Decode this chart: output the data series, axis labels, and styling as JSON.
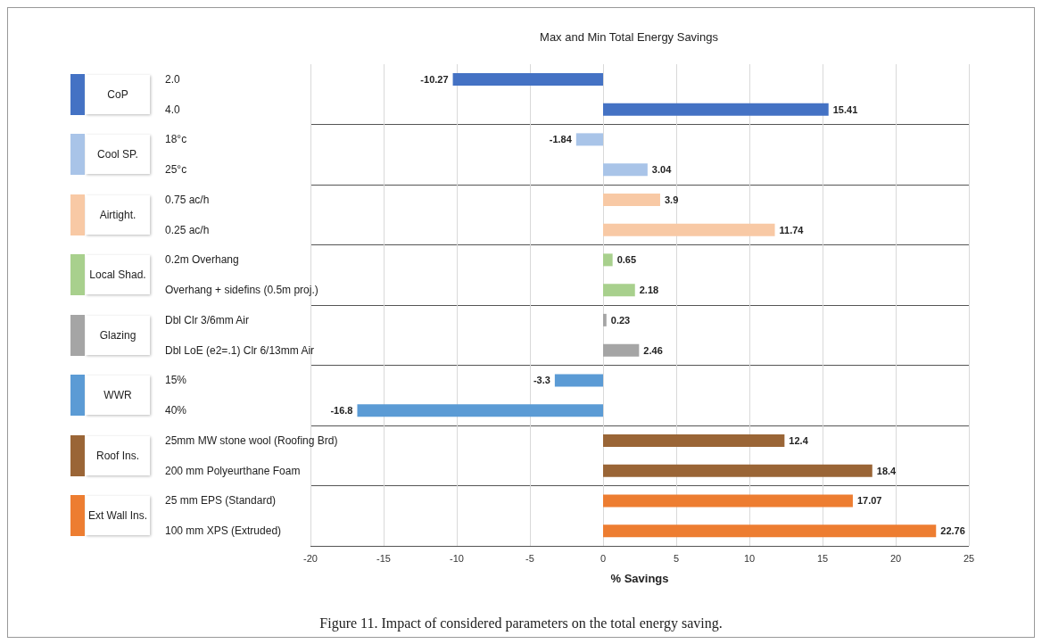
{
  "chart_data": {
    "type": "bar",
    "orientation": "horizontal",
    "title": "Max and Min Total Energy Savings",
    "xlabel": "% Savings",
    "categories": [
      "2.0",
      "4.0",
      "18°c",
      "25°c",
      "0.75 ac/h",
      "0.25 ac/h",
      "0.2m Overhang",
      "Overhang + sidefins (0.5m proj.)",
      "Dbl Clr 3/6mm Air",
      "Dbl LoE (e2=.1) Clr 6/13mm Air",
      "15%",
      "40%",
      "25mm MW stone wool (Roofing Brd)",
      "200 mm Polyeurthane Foam",
      "25 mm EPS (Standard)",
      "100 mm XPS (Extruded)"
    ],
    "values": [
      -10.27,
      15.41,
      -1.84,
      3.04,
      3.9,
      11.74,
      0.65,
      2.18,
      0.23,
      2.46,
      -3.3,
      -16.8,
      12.4,
      18.4,
      17.07,
      22.76
    ],
    "colors": [
      "#4472c4",
      "#4472c4",
      "#a9c4e8",
      "#a9c4e8",
      "#f8c9a5",
      "#f8c9a5",
      "#a8d08d",
      "#a8d08d",
      "#a5a5a5",
      "#a5a5a5",
      "#5b9bd5",
      "#5b9bd5",
      "#9a6536",
      "#9a6536",
      "#ed7d31",
      "#ed7d31"
    ],
    "xlim": [
      -20,
      25
    ],
    "xticks": [
      -20,
      -15,
      -10,
      -5,
      0,
      5,
      10,
      15,
      20,
      25
    ],
    "grid": "x",
    "data_labels": true,
    "annotations": [
      "CoP",
      "Cool SP.",
      "Airtight.",
      "Local Shad.",
      "Glazing",
      "WWR",
      "Roof Ins.",
      "Ext Wall Ins.",
      "Figure 11.  Impact of considered parameters on the total energy saving."
    ]
  }
}
